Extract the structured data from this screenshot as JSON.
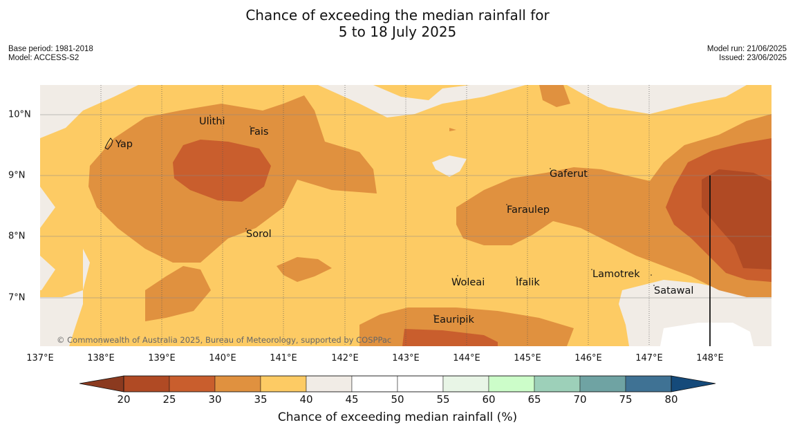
{
  "title_line1": "Chance of exceeding the median rainfall for",
  "title_line2": "5 to 18 July 2025",
  "base_period": "Base period: 1981-2018",
  "model": "Model: ACCESS-S2",
  "model_run": "Model run: 21/06/2025",
  "issued": "Issued: 23/06/2025",
  "copyright": "© Commonwealth of Australia 2025, Bureau of Meteorology, supported by COSPPac",
  "lon_labels": [
    "137°E",
    "138°E",
    "139°E",
    "140°E",
    "141°E",
    "142°E",
    "143°E",
    "144°E",
    "145°E",
    "146°E",
    "147°E",
    "148°E"
  ],
  "lat_labels": [
    "10°N",
    "9°N",
    "8°N",
    "7°N"
  ],
  "places": [
    "Yap",
    "Ulithi",
    "Fais",
    "Sorol",
    "Gaferut",
    "Faraulep",
    "Woleai",
    "Ifalik",
    "Lamotrek",
    "Satawal",
    "Eauripik"
  ],
  "colorbar": {
    "ticks": [
      "20",
      "25",
      "30",
      "35",
      "40",
      "45",
      "50",
      "55",
      "60",
      "65",
      "70",
      "75",
      "80"
    ],
    "colors": [
      "#8b3a1f",
      "#b04a24",
      "#c95e2d",
      "#e0913f",
      "#fdcb64",
      "#f1ece6",
      "#ffffff",
      "#ffffff",
      "#e8f5e6",
      "#ccfdc9",
      "#9dd0b9",
      "#6fa3a3",
      "#3f7294",
      "#154a7a"
    ],
    "title": "Chance of exceeding median rainfall (%)"
  }
}
